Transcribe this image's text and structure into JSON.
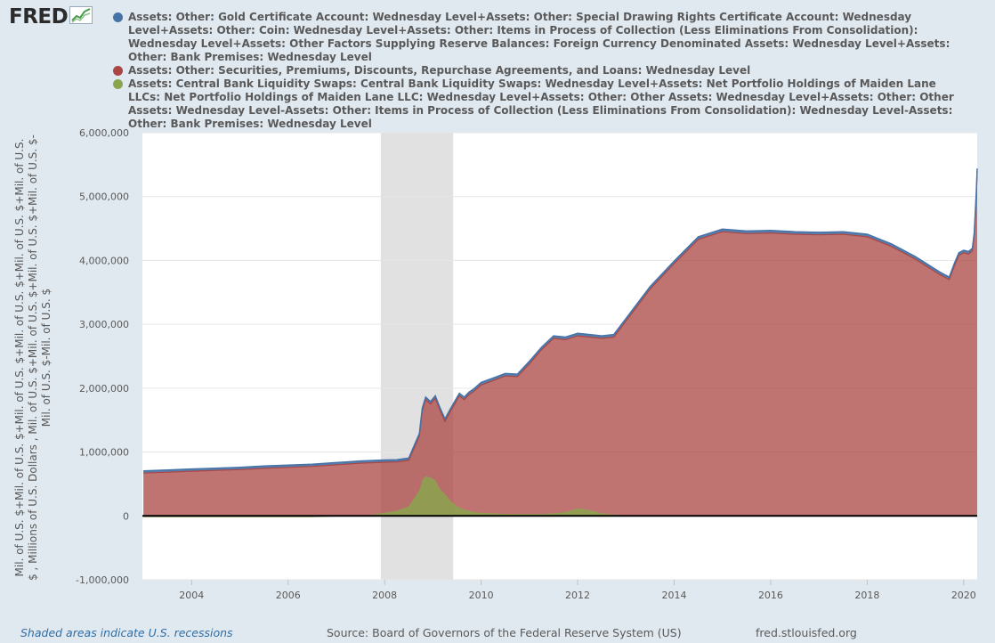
{
  "logo": {
    "text": "FRED"
  },
  "colors": {
    "background": "#e1e9f0",
    "plot_background": "#ffffff",
    "recession": "#e1e1e1",
    "series_blue": "#4572a7",
    "series_red": "#aa4643",
    "series_green": "#89a54e"
  },
  "legend": [
    {
      "label": "Assets: Other: Gold Certificate Account: Wednesday Level+Assets: Other: Special Drawing Rights Certificate Account: Wednesday Level+Assets: Other: Coin: Wednesday Level+Assets: Other: Items in Process of Collection (Less Eliminations From Consolidation): Wednesday Level+Assets: Other Factors Supplying Reserve Balances: Foreign Currency Denominated Assets: Wednesday Level+Assets: Other: Bank Premises: Wednesday Level",
      "color": "#4572a7"
    },
    {
      "label": "Assets: Other: Securities, Premiums, Discounts, Repurchase Agreements, and Loans: Wednesday Level",
      "color": "#aa4643"
    },
    {
      "label": "Assets: Central Bank Liquidity Swaps: Central Bank Liquidity Swaps: Wednesday Level+Assets: Net Portfolio Holdings of Maiden Lane LLCs: Net Portfolio Holdings of Maiden Lane LLC: Wednesday Level+Assets: Other: Other Assets: Wednesday Level+Assets: Other: Other Assets: Wednesday Level-Assets: Other: Items in Process of Collection (Less Eliminations From Consolidation): Wednesday Level-Assets: Other: Bank Premises: Wednesday Level",
      "color": "#89a54e"
    }
  ],
  "footer": {
    "recession_note": "Shaded areas indicate U.S. recessions",
    "source": "Source: Board of Governors of the Federal Reserve System (US)",
    "url": "fred.stlouisfed.org"
  },
  "chart_data": {
    "type": "area",
    "title": "",
    "ylabel": "Mil. of U.S. $+Mil. of U.S. $+Mil. of U.S. $+Mil. of U.S. $+Mil. of U.S. $+Mil. of U.S. $ , Millions of U.S. Dollars , Mil. of U.S. $+Mil. of U.S. $+Mil. of U.S. $+Mil. of U.S. $-Mil. of U.S. $-Mil. of U.S. $",
    "xlabel": "",
    "xlim": [
      2002.98,
      2020.28
    ],
    "ylim": [
      -1000000,
      6000000
    ],
    "x_ticks": [
      2004,
      2006,
      2008,
      2010,
      2012,
      2014,
      2016,
      2018,
      2020
    ],
    "y_ticks": [
      -1000000,
      0,
      1000000,
      2000000,
      3000000,
      4000000,
      5000000,
      6000000
    ],
    "y_tick_labels": [
      "-1,000,000",
      "0",
      "1,000,000",
      "2,000,000",
      "3,000,000",
      "4,000,000",
      "5,000,000",
      "6,000,000"
    ],
    "grid": true,
    "legend_position": "top",
    "recessions": [
      [
        2007.92,
        2009.42
      ]
    ],
    "x": [
      2003.0,
      2003.5,
      2004.0,
      2004.5,
      2005.0,
      2005.5,
      2006.0,
      2006.5,
      2007.0,
      2007.5,
      2008.0,
      2008.25,
      2008.5,
      2008.72,
      2008.78,
      2008.85,
      2008.95,
      2009.05,
      2009.15,
      2009.25,
      2009.35,
      2009.45,
      2009.55,
      2009.65,
      2009.75,
      2009.85,
      2010.0,
      2010.25,
      2010.5,
      2010.75,
      2011.0,
      2011.25,
      2011.5,
      2011.75,
      2012.0,
      2012.25,
      2012.5,
      2012.75,
      2013.0,
      2013.5,
      2014.0,
      2014.5,
      2015.0,
      2015.5,
      2016.0,
      2016.5,
      2017.0,
      2017.5,
      2018.0,
      2018.5,
      2019.0,
      2019.5,
      2019.7,
      2019.8,
      2019.9,
      2020.0,
      2020.1,
      2020.18,
      2020.22,
      2020.26,
      2020.28
    ],
    "series": [
      {
        "name": "Assets: Other: Securities, Premiums, Discounts, Repurchase Agreements, and Loans: Wednesday Level",
        "color": "#aa4643",
        "values": [
          670000,
          685000,
          700000,
          712000,
          725000,
          745000,
          760000,
          775000,
          800000,
          825000,
          840000,
          845000,
          870000,
          1250000,
          1650000,
          1820000,
          1750000,
          1840000,
          1650000,
          1480000,
          1620000,
          1750000,
          1880000,
          1820000,
          1900000,
          1950000,
          2050000,
          2120000,
          2190000,
          2180000,
          2380000,
          2600000,
          2780000,
          2760000,
          2820000,
          2800000,
          2780000,
          2800000,
          3050000,
          3550000,
          3950000,
          4330000,
          4450000,
          4420000,
          4430000,
          4410000,
          4400000,
          4410000,
          4370000,
          4220000,
          4020000,
          3780000,
          3700000,
          3900000,
          4080000,
          4120000,
          4100000,
          4150000,
          4400000,
          5000000,
          5400000
        ]
      },
      {
        "name": "Assets: Other: Gold Certificate Account: Wednesday Level+Assets: Other: Special Drawing Rights Certificate Account: Wednesday Level+Assets: Other: Coin: Wednesday Level+Assets: Other: Items in Process of Collection (Less Eliminations From Consolidation): Wednesday Level+Assets: Other Factors Supplying Reserve Balances: Foreign Currency Denominated Assets: Wednesday Level+Assets: Other: Bank Premises: Wednesday Level",
        "color": "#4572a7",
        "values": [
          35000,
          35000,
          35000,
          35000,
          35000,
          35000,
          35000,
          35000,
          35000,
          35000,
          35000,
          35000,
          35000,
          40000,
          40000,
          40000,
          40000,
          40000,
          40000,
          40000,
          40000,
          40000,
          40000,
          40000,
          40000,
          40000,
          40000,
          40000,
          40000,
          40000,
          40000,
          40000,
          40000,
          40000,
          40000,
          40000,
          40000,
          40000,
          40000,
          40000,
          40000,
          40000,
          40000,
          40000,
          40000,
          40000,
          40000,
          40000,
          40000,
          40000,
          40000,
          40000,
          40000,
          40000,
          40000,
          40000,
          40000,
          40000,
          40000,
          40000,
          40000
        ]
      },
      {
        "name": "Assets: Central Bank Liquidity Swaps: Central Bank Liquidity Swaps: Wednesday Level+Assets: Net Portfolio Holdings of Maiden Lane LLCs: Net Portfolio Holdings of Maiden Lane LLC: Wednesday Level+Assets: Other: Other Assets: Wednesday Level+Assets: Other: Other Assets: Wednesday Level-Assets: Other: Items in Process of Collection (Less Eliminations From Consolidation): Wednesday Level-Assets: Other: Bank Premises: Wednesday Level",
        "color": "#89a54e",
        "values": [
          -20000,
          -20000,
          -20000,
          -20000,
          -20000,
          -20000,
          -20000,
          -20000,
          -10000,
          -5000,
          50000,
          80000,
          150000,
          400000,
          560000,
          620000,
          600000,
          560000,
          420000,
          340000,
          250000,
          180000,
          130000,
          100000,
          80000,
          60000,
          50000,
          40000,
          30000,
          30000,
          30000,
          30000,
          40000,
          60000,
          120000,
          90000,
          40000,
          20000,
          10000,
          10000,
          10000,
          10000,
          10000,
          10000,
          10000,
          10000,
          10000,
          10000,
          10000,
          10000,
          10000,
          10000,
          10000,
          10000,
          10000,
          10000,
          10000,
          10000,
          10000,
          30000,
          60000
        ]
      }
    ]
  }
}
